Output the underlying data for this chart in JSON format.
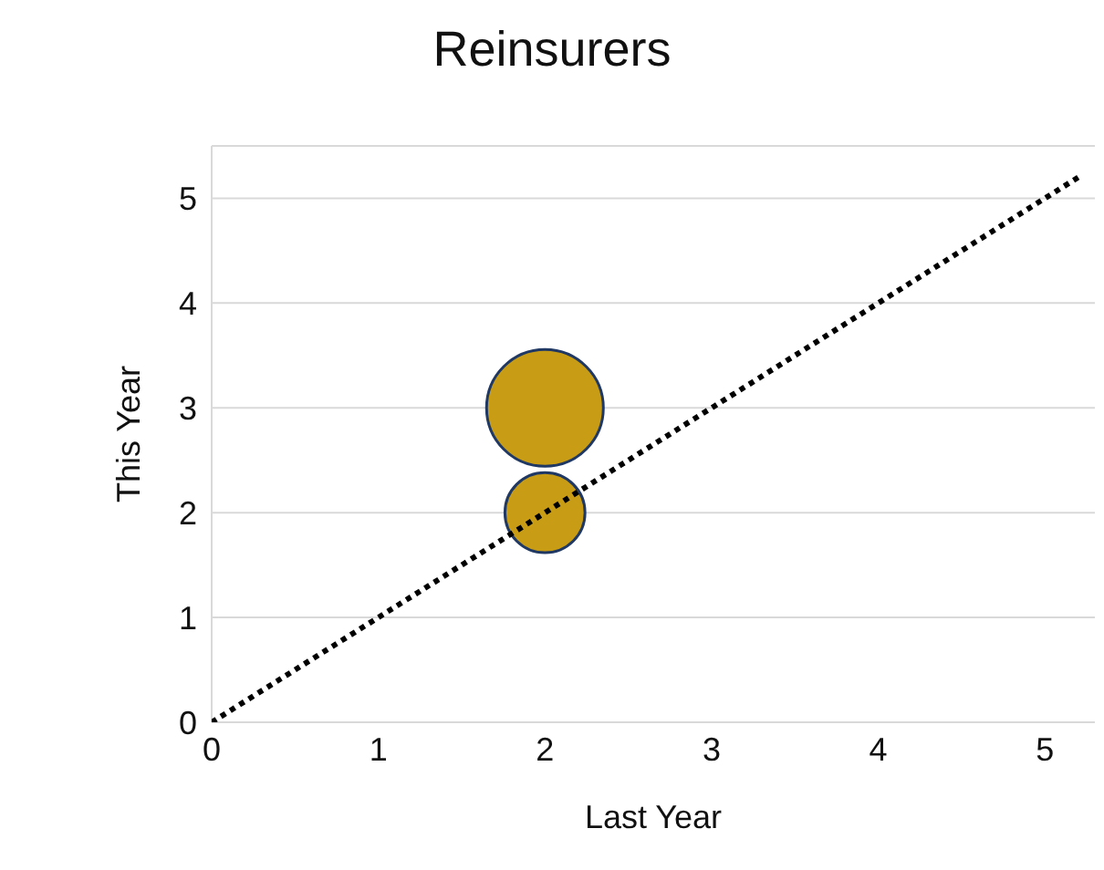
{
  "chart_data": {
    "type": "bubble",
    "title": "Reinsurers",
    "xlabel": "Last Year",
    "ylabel": "This Year",
    "xlim": [
      0,
      5.3
    ],
    "ylim": [
      0,
      5.5
    ],
    "xticks": [
      0,
      1,
      2,
      3,
      4,
      5
    ],
    "yticks": [
      0,
      1,
      2,
      3,
      4,
      5
    ],
    "grid": "y",
    "series": [
      {
        "color": "#c89c14",
        "x": [
          2,
          2
        ],
        "values": [
          3,
          2
        ],
        "sizes": [
          1,
          0.47
        ]
      },
      {
        "type": "line",
        "color": "#000000",
        "line_style": "dotted",
        "x": [
          0,
          5.2
        ],
        "values": [
          0,
          5.2
        ]
      }
    ]
  }
}
